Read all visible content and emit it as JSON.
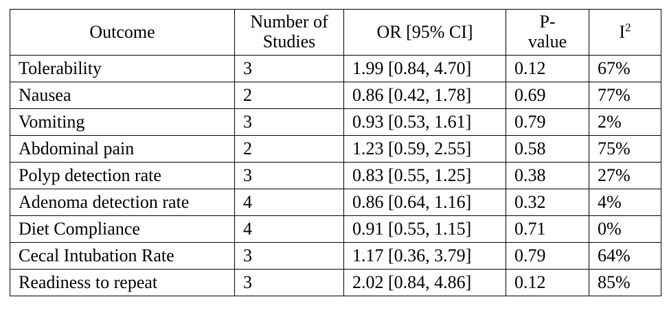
{
  "table": {
    "headers": {
      "outcome": "Outcome",
      "studies_line1": "Number of",
      "studies_line2": "Studies",
      "or_ci": "OR [95% CI]",
      "pvalue_line1": "P-",
      "pvalue_line2": "value",
      "i2_base": "I",
      "i2_sup": "2"
    },
    "rows": [
      {
        "outcome": "Tolerability",
        "studies": "3",
        "or_ci": "1.99 [0.84, 4.70]",
        "pvalue": "0.12",
        "i2": "67%"
      },
      {
        "outcome": "Nausea",
        "studies": "2",
        "or_ci": "0.86 [0.42, 1.78]",
        "pvalue": "0.69",
        "i2": "77%"
      },
      {
        "outcome": "Vomiting",
        "studies": "3",
        "or_ci": "0.93 [0.53, 1.61]",
        "pvalue": "0.79",
        "i2": "2%"
      },
      {
        "outcome": "Abdominal pain",
        "studies": "2",
        "or_ci": "1.23 [0.59, 2.55]",
        "pvalue": "0.58",
        "i2": "75%"
      },
      {
        "outcome": "Polyp detection rate",
        "studies": "3",
        "or_ci": "0.83 [0.55, 1.25]",
        "pvalue": "0.38",
        "i2": "27%"
      },
      {
        "outcome": "Adenoma detection rate",
        "studies": "4",
        "or_ci": "0.86 [0.64, 1.16]",
        "pvalue": "0.32",
        "i2": "4%"
      },
      {
        "outcome": "Diet Compliance",
        "studies": "4",
        "or_ci": "0.91 [0.55, 1.15]",
        "pvalue": "0.71",
        "i2": "0%"
      },
      {
        "outcome": "Cecal Intubation Rate",
        "studies": "3",
        "or_ci": "1.17 [0.36, 3.79]",
        "pvalue": "0.79",
        "i2": "64%"
      },
      {
        "outcome": "Readiness to repeat",
        "studies": "3",
        "or_ci": "2.02 [0.84, 4.86]",
        "pvalue": "0.12",
        "i2": "85%"
      }
    ]
  }
}
